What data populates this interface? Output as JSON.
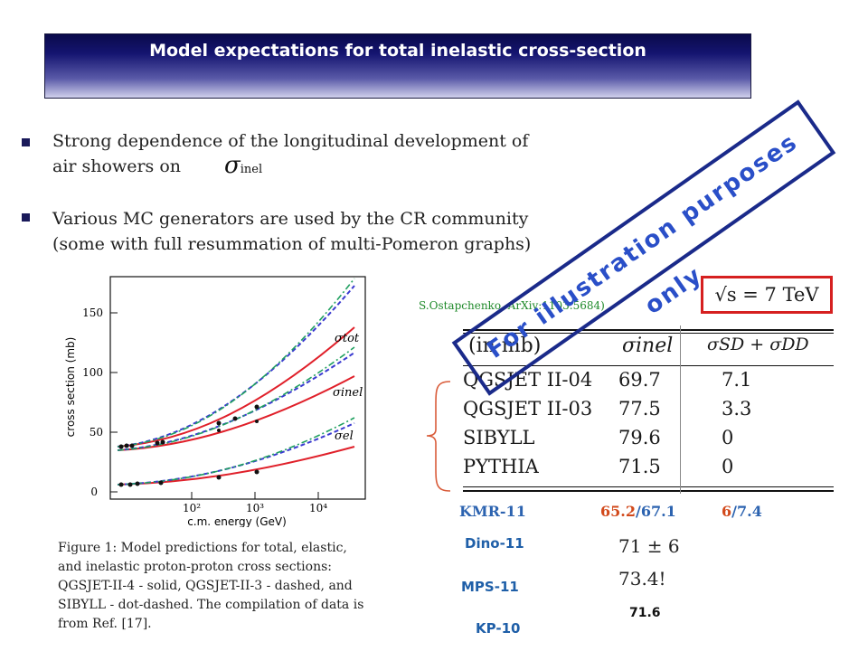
{
  "slide": {
    "title": "Model expectations for total inelastic cross-section",
    "bullets": [
      {
        "line1": "Strong dependence of the longitudinal development of",
        "line2": "air showers on"
      },
      {
        "line1": "Various MC generators are used by the CR community",
        "line2": "(some with full resummation of multi-Pomeron graphs)"
      }
    ],
    "sigma_inel": "σ",
    "sigma_sub": "inel"
  },
  "plot": {
    "y_axis_label": "cross section (mb)",
    "x_axis_label": "c.m. energy (GeV)",
    "y_ticks": [
      "0",
      "50",
      "100",
      "150"
    ],
    "x_ticks": [
      "10²",
      "10³",
      "10⁴"
    ],
    "curve_labels": [
      "σtot",
      "σinel",
      "σel"
    ],
    "colors": {
      "solid": "#e0202a",
      "dashed": "#3a3ad0",
      "dotdash": "#20a060"
    }
  },
  "caption": {
    "text": "Figure 1: Model predictions for total, elastic, and inelastic proton-proton cross sections: QGSJET-II-4 - solid, QGSJET-II-3 - dashed, and SIBYLL - dot-dashed. The compilation of data is from Ref. [17]."
  },
  "citation": "S.Ostapchenko, ArXiv:1103.5684)",
  "energy_box": "√s = 7 TeV",
  "table": {
    "headers": [
      "(in mb)",
      "σinel",
      "σSD + σDD"
    ],
    "rows": [
      {
        "model": "QGSJET II-04",
        "inel": "69.7",
        "diff": "7.1"
      },
      {
        "model": "QGSJET II-03",
        "inel": "77.5",
        "diff": "3.3"
      },
      {
        "model": "SIBYLL",
        "inel": "79.6",
        "diff": "0"
      },
      {
        "model": "PYTHIA",
        "inel": "71.5",
        "diff": "0"
      }
    ]
  },
  "extra_models": {
    "kmr": {
      "name": "KMR-11",
      "inel_a": "65.2",
      "inel_sep": "/",
      "inel_b": "67.1",
      "diff_a": "6",
      "diff_sep": "/",
      "diff_b": "7.4"
    },
    "dino": {
      "name": "Dino-11",
      "value": "71 ± 6"
    },
    "mps": {
      "name": "MPS-11",
      "value": "73.4!"
    },
    "kp": {
      "name": "KP-10",
      "value": "71.6"
    }
  },
  "watermark": "For illustration purposes only"
}
